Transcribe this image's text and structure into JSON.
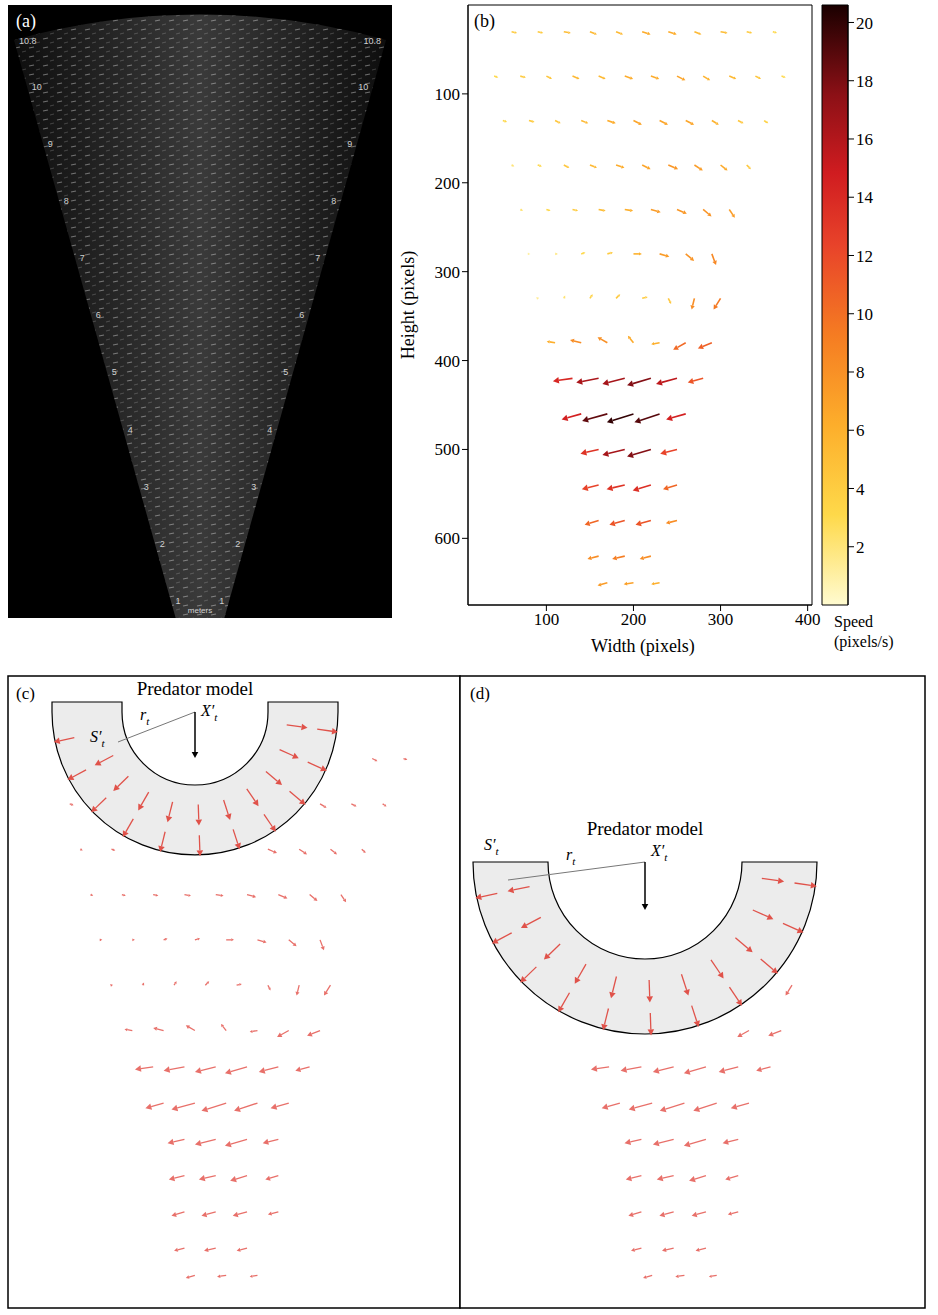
{
  "panel_a": {
    "label": "(a)",
    "range_ticks": [
      1,
      2,
      3,
      4,
      5,
      6,
      7,
      8,
      9,
      10,
      10.8
    ],
    "unit_label": "meters"
  },
  "chart_data": {
    "type": "quiver",
    "panel_label": "(b)",
    "xlabel": "Width (pixels)",
    "ylabel": "Height (pixels)",
    "xlim": [
      10,
      405
    ],
    "ylim": [
      675,
      0
    ],
    "xticks": [
      100,
      200,
      300,
      400
    ],
    "yticks": [
      100,
      200,
      300,
      400,
      500,
      600
    ],
    "colorbar": {
      "label": "Speed (pixels/s)",
      "range": [
        0,
        20.6
      ],
      "ticks": [
        2,
        4,
        6,
        8,
        10,
        12,
        14,
        16,
        18,
        20
      ]
    },
    "vectors": [
      {
        "x": 60,
        "y": 30,
        "u": 4,
        "v": 1
      },
      {
        "x": 90,
        "y": 30,
        "u": 4,
        "v": 1
      },
      {
        "x": 120,
        "y": 30,
        "u": 5,
        "v": 1
      },
      {
        "x": 150,
        "y": 30,
        "u": 5,
        "v": 2
      },
      {
        "x": 180,
        "y": 30,
        "u": 5,
        "v": 2
      },
      {
        "x": 210,
        "y": 30,
        "u": 6,
        "v": 2
      },
      {
        "x": 240,
        "y": 30,
        "u": 6,
        "v": 2
      },
      {
        "x": 270,
        "y": 30,
        "u": 5,
        "v": 2
      },
      {
        "x": 300,
        "y": 30,
        "u": 5,
        "v": 1
      },
      {
        "x": 330,
        "y": 30,
        "u": 4,
        "v": 1
      },
      {
        "x": 360,
        "y": 30,
        "u": 3,
        "v": 1
      },
      {
        "x": 40,
        "y": 80,
        "u": 3,
        "v": 1
      },
      {
        "x": 70,
        "y": 80,
        "u": 4,
        "v": 1
      },
      {
        "x": 100,
        "y": 80,
        "u": 4,
        "v": 2
      },
      {
        "x": 130,
        "y": 80,
        "u": 5,
        "v": 2
      },
      {
        "x": 160,
        "y": 80,
        "u": 5,
        "v": 2
      },
      {
        "x": 190,
        "y": 80,
        "u": 6,
        "v": 2
      },
      {
        "x": 220,
        "y": 80,
        "u": 6,
        "v": 2
      },
      {
        "x": 250,
        "y": 80,
        "u": 6,
        "v": 3
      },
      {
        "x": 280,
        "y": 80,
        "u": 5,
        "v": 3
      },
      {
        "x": 310,
        "y": 80,
        "u": 5,
        "v": 2
      },
      {
        "x": 340,
        "y": 80,
        "u": 4,
        "v": 2
      },
      {
        "x": 370,
        "y": 80,
        "u": 3,
        "v": 1
      },
      {
        "x": 50,
        "y": 130,
        "u": 3,
        "v": 1
      },
      {
        "x": 80,
        "y": 130,
        "u": 4,
        "v": 1
      },
      {
        "x": 110,
        "y": 130,
        "u": 4,
        "v": 2
      },
      {
        "x": 140,
        "y": 130,
        "u": 5,
        "v": 2
      },
      {
        "x": 170,
        "y": 130,
        "u": 6,
        "v": 2
      },
      {
        "x": 200,
        "y": 130,
        "u": 6,
        "v": 3
      },
      {
        "x": 230,
        "y": 130,
        "u": 6,
        "v": 3
      },
      {
        "x": 260,
        "y": 130,
        "u": 6,
        "v": 3
      },
      {
        "x": 290,
        "y": 130,
        "u": 5,
        "v": 3
      },
      {
        "x": 320,
        "y": 130,
        "u": 4,
        "v": 2
      },
      {
        "x": 350,
        "y": 130,
        "u": 3,
        "v": 2
      },
      {
        "x": 60,
        "y": 180,
        "u": 2,
        "v": 1
      },
      {
        "x": 90,
        "y": 180,
        "u": 3,
        "v": 1
      },
      {
        "x": 120,
        "y": 180,
        "u": 4,
        "v": 2
      },
      {
        "x": 150,
        "y": 180,
        "u": 5,
        "v": 2
      },
      {
        "x": 180,
        "y": 180,
        "u": 6,
        "v": 2
      },
      {
        "x": 210,
        "y": 180,
        "u": 6,
        "v": 3
      },
      {
        "x": 240,
        "y": 180,
        "u": 7,
        "v": 3
      },
      {
        "x": 270,
        "y": 180,
        "u": 6,
        "v": 4
      },
      {
        "x": 300,
        "y": 180,
        "u": 5,
        "v": 4
      },
      {
        "x": 330,
        "y": 180,
        "u": 3,
        "v": 3
      },
      {
        "x": 70,
        "y": 230,
        "u": 2,
        "v": 1
      },
      {
        "x": 100,
        "y": 230,
        "u": 3,
        "v": 1
      },
      {
        "x": 130,
        "y": 230,
        "u": 4,
        "v": 1
      },
      {
        "x": 160,
        "y": 230,
        "u": 5,
        "v": 1
      },
      {
        "x": 190,
        "y": 230,
        "u": 6,
        "v": 1
      },
      {
        "x": 220,
        "y": 230,
        "u": 7,
        "v": 2
      },
      {
        "x": 250,
        "y": 230,
        "u": 7,
        "v": 3
      },
      {
        "x": 280,
        "y": 230,
        "u": 6,
        "v": 5
      },
      {
        "x": 310,
        "y": 230,
        "u": 4,
        "v": 6
      },
      {
        "x": 80,
        "y": 280,
        "u": 1,
        "v": 0
      },
      {
        "x": 110,
        "y": 280,
        "u": 2,
        "v": 0
      },
      {
        "x": 140,
        "y": 280,
        "u": 3,
        "v": -1
      },
      {
        "x": 170,
        "y": 280,
        "u": 4,
        "v": -1
      },
      {
        "x": 200,
        "y": 280,
        "u": 6,
        "v": 0
      },
      {
        "x": 230,
        "y": 280,
        "u": 7,
        "v": 2
      },
      {
        "x": 260,
        "y": 280,
        "u": 6,
        "v": 5
      },
      {
        "x": 290,
        "y": 280,
        "u": 3,
        "v": 8
      },
      {
        "x": 90,
        "y": 330,
        "u": -1,
        "v": -1
      },
      {
        "x": 120,
        "y": 330,
        "u": 1,
        "v": -2
      },
      {
        "x": 150,
        "y": 330,
        "u": 2,
        "v": -3
      },
      {
        "x": 180,
        "y": 330,
        "u": 3,
        "v": -3
      },
      {
        "x": 210,
        "y": 330,
        "u": 4,
        "v": -1
      },
      {
        "x": 240,
        "y": 330,
        "u": 2,
        "v": 4
      },
      {
        "x": 270,
        "y": 330,
        "u": -2,
        "v": 8
      },
      {
        "x": 300,
        "y": 330,
        "u": -5,
        "v": 8
      },
      {
        "x": 110,
        "y": 380,
        "u": -6,
        "v": -1
      },
      {
        "x": 140,
        "y": 380,
        "u": -8,
        "v": -2
      },
      {
        "x": 170,
        "y": 380,
        "u": -7,
        "v": -4
      },
      {
        "x": 200,
        "y": 380,
        "u": -4,
        "v": -5
      },
      {
        "x": 230,
        "y": 380,
        "u": -6,
        "v": 1
      },
      {
        "x": 260,
        "y": 380,
        "u": -9,
        "v": 5
      },
      {
        "x": 290,
        "y": 380,
        "u": -10,
        "v": 4
      },
      {
        "x": 130,
        "y": 420,
        "u": -14,
        "v": 2
      },
      {
        "x": 160,
        "y": 420,
        "u": -16,
        "v": 3
      },
      {
        "x": 190,
        "y": 420,
        "u": -16,
        "v": 4
      },
      {
        "x": 220,
        "y": 420,
        "u": -17,
        "v": 5
      },
      {
        "x": 250,
        "y": 420,
        "u": -15,
        "v": 4
      },
      {
        "x": 280,
        "y": 420,
        "u": -11,
        "v": 3
      },
      {
        "x": 140,
        "y": 460,
        "u": -14,
        "v": 4
      },
      {
        "x": 170,
        "y": 460,
        "u": -18,
        "v": 5
      },
      {
        "x": 200,
        "y": 460,
        "u": -19,
        "v": 6
      },
      {
        "x": 230,
        "y": 460,
        "u": -18,
        "v": 6
      },
      {
        "x": 260,
        "y": 460,
        "u": -14,
        "v": 4
      },
      {
        "x": 160,
        "y": 500,
        "u": -13,
        "v": 3
      },
      {
        "x": 190,
        "y": 500,
        "u": -16,
        "v": 4
      },
      {
        "x": 220,
        "y": 500,
        "u": -17,
        "v": 5
      },
      {
        "x": 250,
        "y": 500,
        "u": -12,
        "v": 3
      },
      {
        "x": 160,
        "y": 540,
        "u": -12,
        "v": 3
      },
      {
        "x": 190,
        "y": 540,
        "u": -13,
        "v": 3
      },
      {
        "x": 220,
        "y": 540,
        "u": -13,
        "v": 4
      },
      {
        "x": 250,
        "y": 540,
        "u": -10,
        "v": 3
      },
      {
        "x": 160,
        "y": 580,
        "u": -10,
        "v": 3
      },
      {
        "x": 190,
        "y": 580,
        "u": -11,
        "v": 3
      },
      {
        "x": 220,
        "y": 580,
        "u": -11,
        "v": 3
      },
      {
        "x": 250,
        "y": 580,
        "u": -8,
        "v": 2
      },
      {
        "x": 160,
        "y": 620,
        "u": -8,
        "v": 2
      },
      {
        "x": 190,
        "y": 620,
        "u": -9,
        "v": 2
      },
      {
        "x": 220,
        "y": 620,
        "u": -8,
        "v": 2
      },
      {
        "x": 170,
        "y": 650,
        "u": -7,
        "v": 2
      },
      {
        "x": 200,
        "y": 650,
        "u": -7,
        "v": 1
      },
      {
        "x": 230,
        "y": 650,
        "u": -6,
        "v": 1
      }
    ]
  },
  "panel_c": {
    "label": "(c)",
    "title": "Predator model",
    "symbols": [
      {
        "text": "X′",
        "sub": "t"
      },
      {
        "text": "S′",
        "sub": "t"
      },
      {
        "text": "r",
        "sub": "t"
      }
    ]
  },
  "panel_d": {
    "label": "(d)",
    "title": "Predator model",
    "symbols": [
      {
        "text": "X′",
        "sub": "t"
      },
      {
        "text": "S′",
        "sub": "t"
      },
      {
        "text": "r",
        "sub": "t"
      }
    ]
  }
}
